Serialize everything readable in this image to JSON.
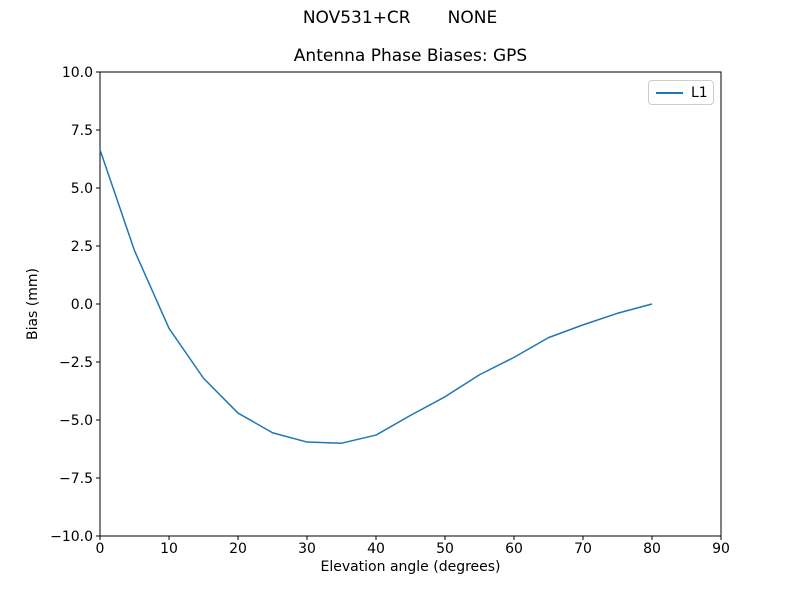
{
  "figure": {
    "suptitle_left": "NOV531+CR",
    "suptitle_right": "NONE",
    "background": "#ffffff"
  },
  "chart_data": {
    "type": "line",
    "title": "Antenna Phase Biases: GPS",
    "xlabel": "Elevation angle (degrees)",
    "ylabel": "Bias (mm)",
    "xlim": [
      0,
      90
    ],
    "ylim": [
      -10,
      10
    ],
    "x_ticks": [
      0,
      10,
      20,
      30,
      40,
      50,
      60,
      70,
      80,
      90
    ],
    "x_tick_labels": [
      "0",
      "10",
      "20",
      "30",
      "40",
      "50",
      "60",
      "70",
      "80",
      "90"
    ],
    "y_ticks": [
      10.0,
      7.5,
      5.0,
      2.5,
      0.0,
      -2.5,
      -5.0,
      -7.5,
      -10.0
    ],
    "y_tick_labels": [
      "10.0",
      "7.5",
      "5.0",
      "2.5",
      "0.0",
      "−2.5",
      "−5.0",
      "−7.5",
      "−10.0"
    ],
    "grid": false,
    "legend_position": "upper right",
    "axis_color": "#000000",
    "series": [
      {
        "name": "L1",
        "color": "#1f77b4",
        "x": [
          0,
          5,
          10,
          15,
          20,
          25,
          30,
          35,
          40,
          45,
          50,
          55,
          60,
          65,
          70,
          75,
          80
        ],
        "y": [
          6.65,
          2.3,
          -1.05,
          -3.2,
          -4.7,
          -5.55,
          -5.95,
          -6.0,
          -5.65,
          -4.8,
          -4.0,
          -3.05,
          -2.3,
          -1.45,
          -0.9,
          -0.4,
          0.0
        ]
      }
    ]
  }
}
